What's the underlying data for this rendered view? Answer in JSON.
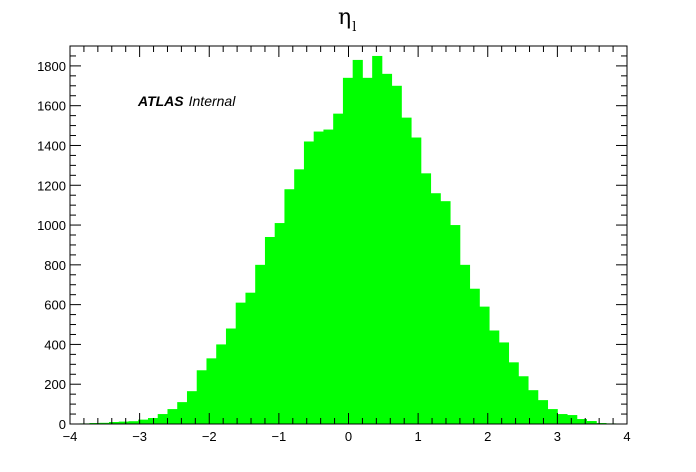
{
  "chart_data": {
    "type": "bar",
    "title": "η",
    "title_subscript": "l",
    "annotation": {
      "bold": "ATLAS",
      "italic": "Internal"
    },
    "xlim": [
      -4,
      4
    ],
    "ylim": [
      0,
      1900
    ],
    "x_ticks": [
      -4,
      -3,
      -2,
      -1,
      0,
      1,
      2,
      3,
      4
    ],
    "x_tick_labels": [
      "−4",
      "−3",
      "−2",
      "−1",
      "0",
      "1",
      "2",
      "3",
      "4"
    ],
    "y_ticks": [
      0,
      200,
      400,
      600,
      800,
      1000,
      1200,
      1400,
      1600,
      1800
    ],
    "y_tick_labels": [
      "0",
      "200",
      "400",
      "600",
      "800",
      "1000",
      "1200",
      "1400",
      "1600",
      "1800"
    ],
    "bin_edges_start": -4.0,
    "bin_width": 0.14,
    "values": [
      2,
      3,
      5,
      6,
      10,
      12,
      14,
      22,
      30,
      50,
      75,
      110,
      165,
      270,
      330,
      400,
      480,
      610,
      660,
      800,
      940,
      1010,
      1180,
      1280,
      1420,
      1470,
      1480,
      1560,
      1740,
      1830,
      1740,
      1850,
      1760,
      1700,
      1540,
      1440,
      1260,
      1160,
      1120,
      1000,
      800,
      680,
      590,
      470,
      410,
      310,
      240,
      170,
      120,
      75,
      50,
      45,
      25,
      15,
      5,
      3,
      2
    ],
    "color": "#00ff00",
    "grid": false
  }
}
